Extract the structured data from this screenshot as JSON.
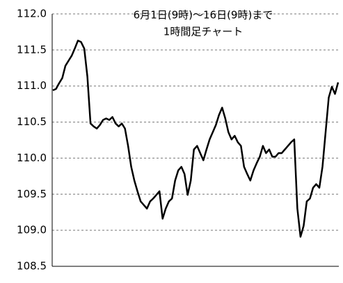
{
  "chart_data": {
    "type": "line",
    "title": "6月1日(9時)～16日(9時)まで",
    "subtitle": "1時間足チャート",
    "color": "#000000",
    "values": [
      110.94,
      110.96,
      111.04,
      111.11,
      111.28,
      111.35,
      111.42,
      111.52,
      111.63,
      111.61,
      111.52,
      111.13,
      110.48,
      110.44,
      110.41,
      110.46,
      110.53,
      110.55,
      110.53,
      110.57,
      110.48,
      110.44,
      110.48,
      110.41,
      110.17,
      109.88,
      109.69,
      109.54,
      109.4,
      109.35,
      109.3,
      109.4,
      109.44,
      109.49,
      109.54,
      109.16,
      109.3,
      109.4,
      109.44,
      109.69,
      109.83,
      109.88,
      109.78,
      109.49,
      109.69,
      110.12,
      110.17,
      110.07,
      109.97,
      110.12,
      110.26,
      110.36,
      110.46,
      110.6,
      110.7,
      110.55,
      110.36,
      110.26,
      110.31,
      110.22,
      110.17,
      109.88,
      109.78,
      109.69,
      109.83,
      109.93,
      110.02,
      110.17,
      110.07,
      110.12,
      110.02,
      110.02,
      110.07,
      110.07,
      110.12,
      110.17,
      110.22,
      110.26,
      109.3,
      108.91,
      109.06,
      109.4,
      109.44,
      109.59,
      109.64,
      109.59,
      109.88,
      110.36,
      110.84,
      110.99,
      110.89,
      111.05
    ],
    "ylim": [
      108.5,
      112.0
    ],
    "yticks": [
      {
        "value": 108.5,
        "label": "108.5"
      },
      {
        "value": 109.0,
        "label": "109.0"
      },
      {
        "value": 109.5,
        "label": "109.5"
      },
      {
        "value": 110.0,
        "label": "110.0"
      },
      {
        "value": 110.5,
        "label": "110.5"
      },
      {
        "value": 111.0,
        "label": "111.0"
      },
      {
        "value": 111.5,
        "label": "111.5"
      },
      {
        "value": 112.0,
        "label": "112.0"
      }
    ],
    "grid": true
  }
}
